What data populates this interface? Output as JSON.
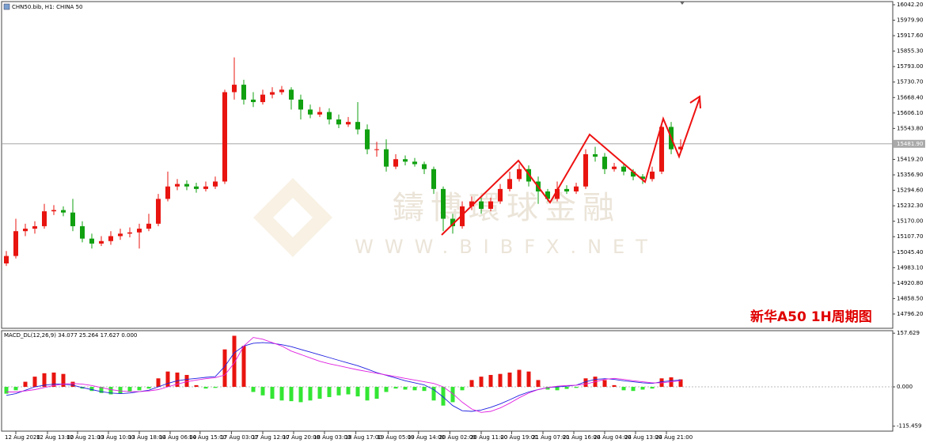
{
  "header": {
    "title": "CHN50.bib, H1:  CHINA 50"
  },
  "chart_data": [
    {
      "type": "candlestick",
      "up_color": "#e8140f",
      "down_color": "#10a010",
      "candles": [
        [
          15000,
          15050,
          14990,
          15030
        ],
        [
          15030,
          15180,
          15020,
          15130
        ],
        [
          15130,
          15160,
          15110,
          15140
        ],
        [
          15140,
          15170,
          15120,
          15150
        ],
        [
          15150,
          15240,
          15140,
          15210
        ],
        [
          15210,
          15235,
          15195,
          15215
        ],
        [
          15215,
          15230,
          15190,
          15205
        ],
        [
          15205,
          15260,
          15130,
          15150
        ],
        [
          15150,
          15170,
          15085,
          15100
        ],
        [
          15100,
          15120,
          15060,
          15080
        ],
        [
          15080,
          15110,
          15070,
          15090
        ],
        [
          15090,
          15130,
          15075,
          15110
        ],
        [
          15110,
          15140,
          15095,
          15120
        ],
        [
          15120,
          15145,
          15105,
          15125
        ],
        [
          15125,
          15160,
          15060,
          15140
        ],
        [
          15140,
          15200,
          15130,
          15160
        ],
        [
          15160,
          15280,
          15150,
          15260
        ],
        [
          15260,
          15370,
          15250,
          15310
        ],
        [
          15310,
          15340,
          15295,
          15320
        ],
        [
          15320,
          15335,
          15295,
          15310
        ],
        [
          15310,
          15325,
          15285,
          15300
        ],
        [
          15300,
          15330,
          15290,
          15310
        ],
        [
          15310,
          15350,
          15300,
          15330
        ],
        [
          15330,
          15700,
          15320,
          15690
        ],
        [
          15690,
          15830,
          15660,
          15720
        ],
        [
          15720,
          15740,
          15640,
          15660
        ],
        [
          15660,
          15690,
          15630,
          15650
        ],
        [
          15650,
          15700,
          15640,
          15680
        ],
        [
          15680,
          15710,
          15665,
          15690
        ],
        [
          15690,
          15715,
          15680,
          15700
        ],
        [
          15700,
          15710,
          15620,
          15660
        ],
        [
          15660,
          15680,
          15580,
          15620
        ],
        [
          15620,
          15640,
          15585,
          15600
        ],
        [
          15600,
          15630,
          15590,
          15610
        ],
        [
          15610,
          15625,
          15560,
          15580
        ],
        [
          15580,
          15600,
          15545,
          15560
        ],
        [
          15560,
          15590,
          15550,
          15570
        ],
        [
          15570,
          15650,
          15520,
          15540
        ],
        [
          15540,
          15560,
          15440,
          15460
        ],
        [
          15460,
          15490,
          15430,
          15460
        ],
        [
          15460,
          15500,
          15370,
          15390
        ],
        [
          15390,
          15440,
          15380,
          15420
        ],
        [
          15420,
          15435,
          15395,
          15410
        ],
        [
          15410,
          15425,
          15390,
          15400
        ],
        [
          15400,
          15410,
          15360,
          15380
        ],
        [
          15380,
          15390,
          15280,
          15300
        ],
        [
          15300,
          15310,
          15130,
          15180
        ],
        [
          15180,
          15200,
          15120,
          15150
        ],
        [
          15150,
          15250,
          15140,
          15230
        ],
        [
          15230,
          15270,
          15215,
          15250
        ],
        [
          15250,
          15265,
          15200,
          15220
        ],
        [
          15220,
          15265,
          15210,
          15250
        ],
        [
          15250,
          15320,
          15240,
          15300
        ],
        [
          15300,
          15370,
          15290,
          15340
        ],
        [
          15340,
          15400,
          15330,
          15380
        ],
        [
          15380,
          15395,
          15310,
          15330
        ],
        [
          15330,
          15350,
          15240,
          15290
        ],
        [
          15290,
          15300,
          15250,
          15260
        ],
        [
          15260,
          15330,
          15250,
          15300
        ],
        [
          15300,
          15315,
          15280,
          15290
        ],
        [
          15290,
          15325,
          15280,
          15310
        ],
        [
          15310,
          15460,
          15300,
          15440
        ],
        [
          15440,
          15470,
          15410,
          15430
        ],
        [
          15430,
          15445,
          15360,
          15380
        ],
        [
          15380,
          15405,
          15370,
          15390
        ],
        [
          15390,
          15400,
          15355,
          15370
        ],
        [
          15370,
          15380,
          15335,
          15350
        ],
        [
          15350,
          15360,
          15320,
          15340
        ],
        [
          15340,
          15390,
          15330,
          15370
        ],
        [
          15370,
          15560,
          15360,
          15550
        ],
        [
          15550,
          15570,
          15440,
          15460
        ],
        [
          15460,
          15500,
          15450,
          15470
        ]
      ],
      "xlim": [
        -0.5,
        93.33
      ],
      "xticks": [
        {
          "value": 1,
          "label": "12 Aug 2020"
        },
        {
          "value": 4.33,
          "label": "12 Aug 13:00"
        },
        {
          "value": 7.5,
          "label": "12 Aug 21:00"
        },
        {
          "value": 10.75,
          "label": "13 Aug 10:00"
        },
        {
          "value": 14,
          "label": "13 Aug 18:00"
        },
        {
          "value": 17.25,
          "label": "14 Aug 06:00"
        },
        {
          "value": 20.4,
          "label": "14 Aug 15:00"
        },
        {
          "value": 23.7,
          "label": "17 Aug 03:00"
        },
        {
          "value": 27,
          "label": "17 Aug 12:00"
        },
        {
          "value": 30.25,
          "label": "17 Aug 20:00"
        },
        {
          "value": 33.5,
          "label": "18 Aug 03:00"
        },
        {
          "value": 36.8,
          "label": "18 Aug 17:00"
        },
        {
          "value": 40.2,
          "label": "19 Aug 05:00"
        },
        {
          "value": 43.4,
          "label": "19 Aug 14:00"
        },
        {
          "value": 46.7,
          "label": "20 Aug 02:00"
        },
        {
          "value": 50,
          "label": "20 Aug 11:00"
        },
        {
          "value": 53.2,
          "label": "20 Aug 19:00"
        },
        {
          "value": 56.5,
          "label": "21 Aug 07:00"
        },
        {
          "value": 59.75,
          "label": "21 Aug 16:00"
        },
        {
          "value": 63,
          "label": "24 Aug 04:00"
        },
        {
          "value": 66.25,
          "label": "24 Aug 13:00"
        },
        {
          "value": 69.5,
          "label": "24 Aug 21:00"
        }
      ],
      "ylim": [
        14738.7,
        16054.9
      ],
      "yticks": [
        {
          "value": 16042.2,
          "label": "16042.20"
        },
        {
          "value": 15979.9,
          "label": "15979.90"
        },
        {
          "value": 15917.6,
          "label": "15917.60"
        },
        {
          "value": 15855.3,
          "label": "15855.30"
        },
        {
          "value": 15793,
          "label": "15793.00"
        },
        {
          "value": 15730.7,
          "label": "15730.70"
        },
        {
          "value": 15668.4,
          "label": "15668.40"
        },
        {
          "value": 15606.1,
          "label": "15606.10"
        },
        {
          "value": 15543.8,
          "label": "15543.80"
        },
        {
          "value": 15419.2,
          "label": "15419.20"
        },
        {
          "value": 15356.9,
          "label": "15356.90"
        },
        {
          "value": 15294.6,
          "label": "15294.60"
        },
        {
          "value": 15232.3,
          "label": "15232.30"
        },
        {
          "value": 15170,
          "label": "15170.00"
        },
        {
          "value": 15107.7,
          "label": "15107.70"
        },
        {
          "value": 15045.4,
          "label": "15045.40"
        },
        {
          "value": 14983.1,
          "label": "14983.10"
        },
        {
          "value": 14920.8,
          "label": "14920.80"
        },
        {
          "value": 14858.5,
          "label": "14858.50"
        },
        {
          "value": 14796.2,
          "label": "14796.20"
        }
      ],
      "last_price": {
        "value": 15481.9,
        "label": "15481.90"
      },
      "annotation": "新华A50 1H周期图",
      "watermark": {
        "name": "鑄博環球金融",
        "url": "WWW.BIBFX.NET"
      }
    },
    {
      "type": "macd",
      "label": "MACD_DL(12,26,9) 34.077 25.264 17.627 0.000",
      "up_color": "#e8140f",
      "down_color": "#33e633",
      "main_color": "#2020e0",
      "signal_color": "#e020e0",
      "histogram": [
        -20,
        -10,
        15,
        30,
        40,
        42,
        38,
        15,
        -5,
        -12,
        -18,
        -22,
        -20,
        -15,
        -10,
        -5,
        25,
        45,
        42,
        35,
        5,
        -5,
        -3,
        110,
        150,
        120,
        -15,
        -25,
        -35,
        -40,
        -42,
        -45,
        -40,
        -35,
        -30,
        -25,
        -22,
        -28,
        -40,
        -35,
        -15,
        -5,
        -8,
        -10,
        -12,
        -40,
        -55,
        -45,
        -10,
        20,
        30,
        35,
        38,
        42,
        50,
        45,
        20,
        -8,
        -10,
        -6,
        -3,
        25,
        30,
        20,
        5,
        -10,
        -12,
        -8,
        -5,
        25,
        28,
        22
      ],
      "main": [
        -25,
        -20,
        -10,
        0,
        5,
        8,
        8,
        5,
        -2,
        -8,
        -14,
        -18,
        -20,
        -18,
        -14,
        -10,
        0,
        10,
        18,
        22,
        25,
        28,
        30,
        60,
        100,
        120,
        128,
        130,
        128,
        124,
        118,
        110,
        102,
        94,
        86,
        78,
        70,
        62,
        52,
        42,
        34,
        26,
        18,
        12,
        6,
        -8,
        -30,
        -55,
        -70,
        -72,
        -68,
        -60,
        -50,
        -38,
        -25,
        -15,
        -8,
        -2,
        0,
        2,
        5,
        15,
        22,
        24,
        22,
        18,
        15,
        12,
        10,
        15,
        18,
        20
      ],
      "signal": [
        -15,
        -15,
        -12,
        -8,
        -2,
        4,
        8,
        10,
        8,
        4,
        -2,
        -8,
        -12,
        -14,
        -14,
        -12,
        -8,
        0,
        8,
        15,
        20,
        24,
        27,
        35,
        70,
        120,
        145,
        140,
        130,
        120,
        105,
        95,
        85,
        75,
        68,
        62,
        56,
        50,
        45,
        40,
        35,
        30,
        25,
        20,
        15,
        10,
        0,
        -20,
        -45,
        -65,
        -75,
        -72,
        -62,
        -48,
        -32,
        -18,
        -8,
        -2,
        2,
        4,
        5,
        8,
        15,
        22,
        25,
        22,
        18,
        15,
        12,
        12,
        15,
        18
      ],
      "xlim": [
        -0.5,
        93.33
      ],
      "ylim": [
        -130,
        165
      ],
      "yticks": [
        {
          "value": 157.629,
          "label": "157.629"
        },
        {
          "value": 0,
          "label": "0.000"
        },
        {
          "value": -115.459,
          "label": "-115.459"
        }
      ]
    }
  ]
}
